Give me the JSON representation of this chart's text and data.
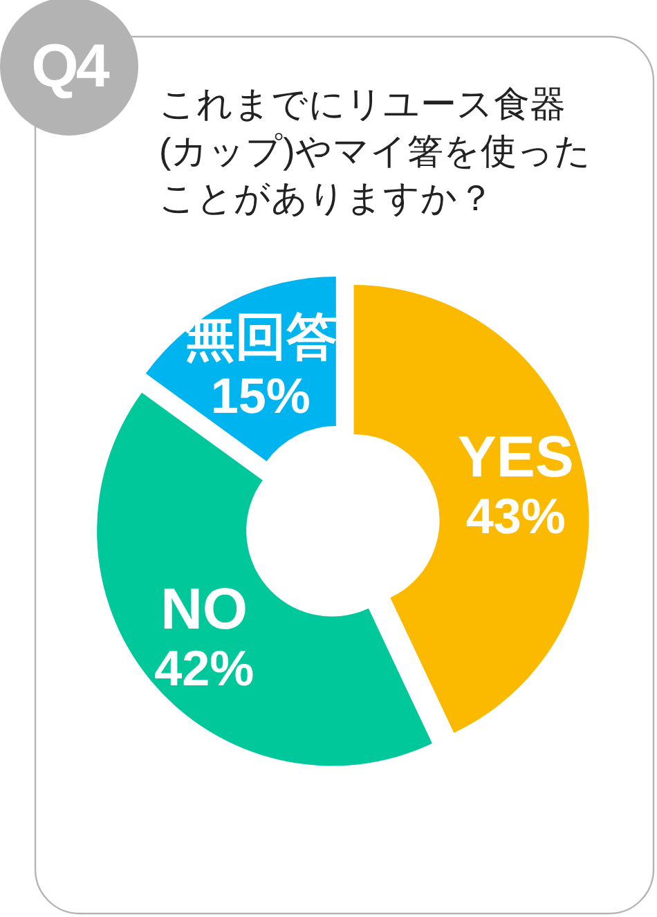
{
  "chart_data": {
    "type": "donut",
    "title": "これまでにリユース食器(カップ)やマイ箸を使ったことがありますか？",
    "annotations": [
      "Q4"
    ],
    "categories": [
      "YES",
      "NO",
      "無回答"
    ],
    "values": [
      43,
      42,
      15
    ],
    "colors": [
      "#fbb900",
      "#00c89b",
      "#00b4f0"
    ],
    "value_labels": [
      "43%",
      "42%",
      "15%"
    ]
  }
}
